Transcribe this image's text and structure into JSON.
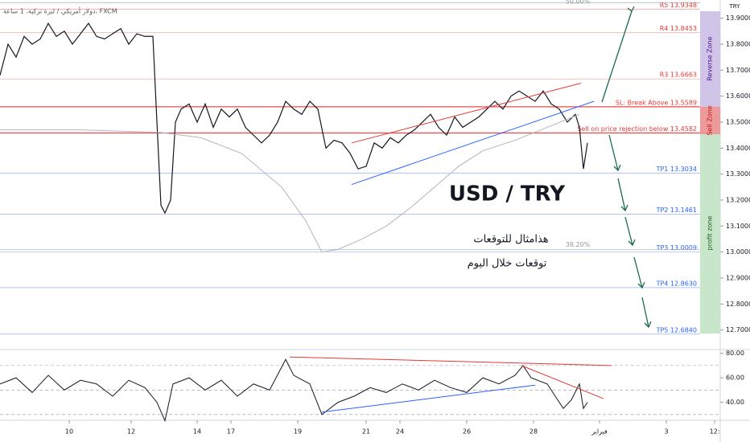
{
  "chart_data": {
    "type": "line",
    "title": "دولار أمريكي / ليرة تركية، 1 ساعة، FXCM",
    "currency": "TRY",
    "annotations": [
      "USD / TRY",
      "هذامثال للتوقعات",
      "توقعات خلال اليوم"
    ],
    "zones": [
      "Reverse Zone",
      "Sell Zone",
      "profit zone"
    ],
    "xlim": [
      0,
      89.5
    ],
    "xticks": [
      {
        "value": 8.6,
        "label": "10"
      },
      {
        "value": 16.3,
        "label": "12"
      },
      {
        "value": 24.5,
        "label": "14"
      },
      {
        "value": 28.7,
        "label": "17"
      },
      {
        "value": 37.0,
        "label": "19"
      },
      {
        "value": 45.5,
        "label": "21"
      },
      {
        "value": 49.7,
        "label": "24"
      },
      {
        "value": 58.0,
        "label": "26"
      },
      {
        "value": 66.3,
        "label": "28"
      },
      {
        "value": 74.5,
        "label": "فبراير"
      },
      {
        "value": 82.8,
        "label": "3"
      },
      {
        "value": 88.8,
        "label": "12:"
      }
    ],
    "ylim": [
      12.64,
      13.97
    ],
    "yticks": [
      {
        "value": 13.9,
        "label": "13.90000"
      },
      {
        "value": 13.8,
        "label": "13.80000"
      },
      {
        "value": 13.7,
        "label": "13.70000"
      },
      {
        "value": 13.6,
        "label": "13.60000"
      },
      {
        "value": 13.5,
        "label": "13.50000"
      },
      {
        "value": 13.4,
        "label": "13.40000"
      },
      {
        "value": 13.3,
        "label": "13.30000"
      },
      {
        "value": 13.2,
        "label": "13.20000"
      },
      {
        "value": 13.1,
        "label": "13.10000"
      },
      {
        "value": 13.0,
        "label": "13.00000"
      },
      {
        "value": 12.9,
        "label": "12.90000"
      },
      {
        "value": 12.8,
        "label": "12.80000"
      },
      {
        "value": 12.7,
        "label": "12.70000"
      }
    ],
    "levels": [
      {
        "label": "R5 13.9348",
        "value": 13.9348,
        "color": "#e53935"
      },
      {
        "label": "R4 13.8453",
        "value": 13.8453,
        "color": "#e53935"
      },
      {
        "label": "R3 13.6663",
        "value": 13.6663,
        "color": "#e53935"
      },
      {
        "label": "SL: Break Above 13.5589",
        "value": 13.5589,
        "color": "#e53935"
      },
      {
        "label": "Sell on price rejection below 13.4582",
        "value": 13.4582,
        "color": "#e53935"
      },
      {
        "label": "TP1 13.3034",
        "value": 13.3034,
        "color": "#2962ff"
      },
      {
        "label": "TP2 13.1461",
        "value": 13.1461,
        "color": "#2962ff"
      },
      {
        "label": "TP3 13.0009",
        "value": 13.0009,
        "color": "#2962ff"
      },
      {
        "label": "TP4 12.8630",
        "value": 12.863,
        "color": "#2962ff"
      },
      {
        "label": "TP5 12.6840",
        "value": 12.684,
        "color": "#2962ff"
      }
    ],
    "fib_levels": [
      {
        "label": "50.00%",
        "value": 13.96
      },
      {
        "label": "38.20%",
        "value": 13.01
      }
    ],
    "series": [
      {
        "color": "#131722",
        "x": [
          0,
          1,
          2,
          3,
          4,
          5,
          6,
          7,
          8,
          9,
          10,
          11,
          12,
          13,
          14,
          15,
          16,
          17,
          18,
          19,
          19.5,
          20,
          20.5,
          21.2,
          21.8,
          22.5,
          23.5,
          24.5,
          25.5,
          26.5,
          27.5,
          28.5,
          29.5,
          30.5,
          31.5,
          32.5,
          33.5,
          34.5,
          35.5,
          36.5,
          37.5,
          38.5,
          39.5,
          40.5,
          41.5,
          42.5,
          43.5,
          44.5,
          45.5,
          46.5,
          47.5,
          48.5,
          49.5,
          50.5,
          51.5,
          52.5,
          53.5,
          54.5,
          55.5,
          56.5,
          57.5,
          58.5,
          59.5,
          60.5,
          61.5,
          62.5,
          63.5,
          64.5,
          65.5,
          66.5,
          67.5,
          68.5,
          69.5,
          70.5,
          71.5,
          72,
          72.5,
          73
        ],
        "values": [
          13.68,
          13.8,
          13.75,
          13.83,
          13.8,
          13.82,
          13.88,
          13.83,
          13.85,
          13.8,
          13.84,
          13.88,
          13.83,
          13.82,
          13.84,
          13.86,
          13.8,
          13.84,
          13.83,
          13.83,
          13.5,
          13.18,
          13.15,
          13.2,
          13.5,
          13.55,
          13.57,
          13.5,
          13.57,
          13.48,
          13.55,
          13.52,
          13.55,
          13.48,
          13.45,
          13.42,
          13.45,
          13.5,
          13.58,
          13.55,
          13.53,
          13.58,
          13.55,
          13.4,
          13.43,
          13.42,
          13.38,
          13.32,
          13.33,
          13.42,
          13.4,
          13.44,
          13.42,
          13.45,
          13.47,
          13.5,
          13.53,
          13.48,
          13.45,
          13.52,
          13.48,
          13.5,
          13.52,
          13.55,
          13.58,
          13.55,
          13.6,
          13.62,
          13.6,
          13.58,
          13.62,
          13.57,
          13.55,
          13.5,
          13.53,
          13.48,
          13.32,
          13.42
        ]
      },
      {
        "color": "#b2b5be",
        "x": [
          0,
          10,
          20,
          25,
          30,
          35,
          38,
          40,
          42,
          45,
          48,
          51,
          54,
          57,
          60,
          64,
          68,
          72
        ],
        "values": [
          13.47,
          13.47,
          13.46,
          13.44,
          13.38,
          13.25,
          13.12,
          13.0,
          13.01,
          13.05,
          13.1,
          13.17,
          13.25,
          13.33,
          13.39,
          13.43,
          13.48,
          13.53
        ]
      }
    ],
    "trendlines": [
      {
        "color": "#e53935",
        "x": [
          43.7,
          72.2
        ],
        "values": [
          13.42,
          13.65
        ]
      },
      {
        "color": "#2962ff",
        "x": [
          43.7,
          73.8
        ],
        "values": [
          13.26,
          13.58
        ]
      }
    ],
    "rsi": {
      "ylim": [
        24,
        85
      ],
      "yticks": [
        {
          "value": 80,
          "label": "80.00"
        },
        {
          "value": 60,
          "label": "60.00"
        },
        {
          "value": 40,
          "label": "40.00"
        }
      ],
      "bands": [
        70,
        50,
        30
      ],
      "color": "#131722",
      "x": [
        0,
        2,
        4,
        6,
        8,
        10,
        12,
        14,
        16,
        18,
        19.5,
        20.5,
        21.5,
        23.5,
        25.5,
        27.5,
        29.5,
        31.5,
        33.5,
        35.5,
        36.5,
        38.5,
        40,
        42,
        44,
        46,
        48,
        50,
        52,
        54,
        56,
        58,
        60,
        62,
        64,
        65,
        66,
        68,
        70,
        71,
        72,
        72.5,
        73
      ],
      "values": [
        55,
        60,
        48,
        62,
        50,
        58,
        55,
        45,
        58,
        52,
        40,
        25,
        55,
        60,
        50,
        58,
        45,
        55,
        50,
        75,
        62,
        55,
        30,
        40,
        45,
        52,
        48,
        55,
        50,
        58,
        52,
        48,
        60,
        55,
        62,
        70,
        60,
        55,
        35,
        42,
        55,
        35,
        40
      ],
      "trendlines": [
        {
          "color": "#e53935",
          "x": [
            36,
            76
          ],
          "values": [
            77,
            70
          ]
        },
        {
          "color": "#e53935",
          "x": [
            64.8,
            75
          ],
          "values": [
            70,
            43
          ]
        },
        {
          "color": "#2962ff",
          "x": [
            40,
            66.5
          ],
          "values": [
            32,
            54
          ]
        }
      ]
    }
  }
}
